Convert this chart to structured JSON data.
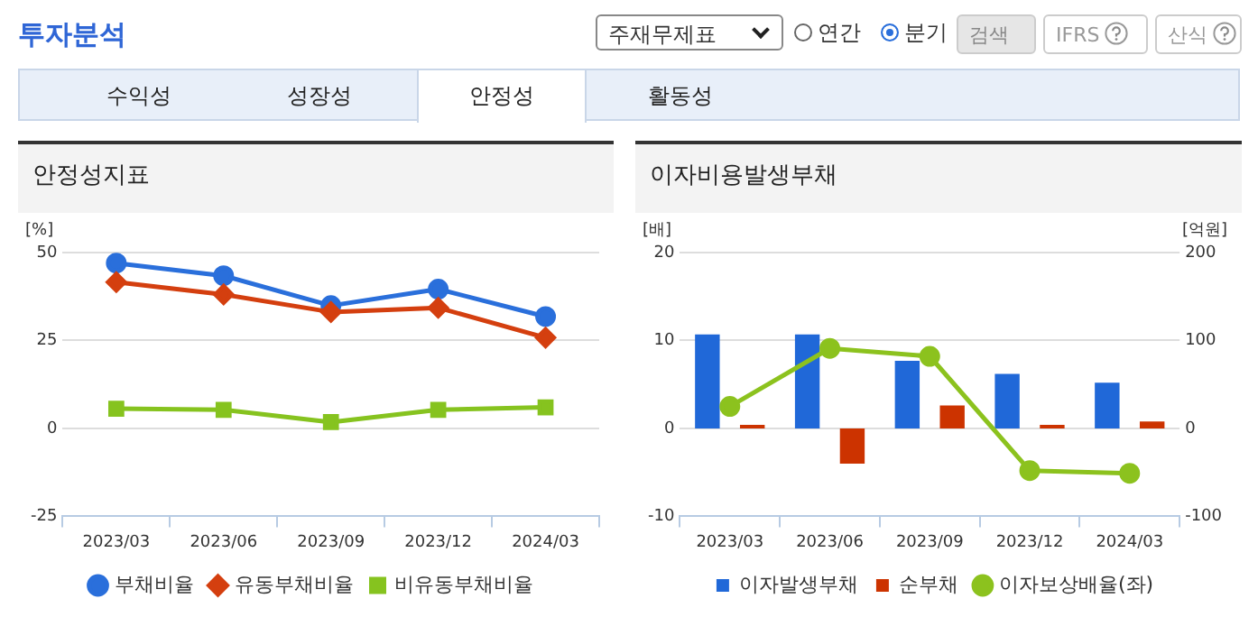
{
  "chart_data": [
    {
      "type": "other",
      "title": "투자분석",
      "annotations": [
        "주재무제표",
        "연간",
        "분기",
        "검색",
        "IFRS",
        "산식",
        "수익성",
        "성장성",
        "안정성",
        "활동성"
      ]
    },
    {
      "type": "line",
      "title": "안정성지표",
      "ylabel": "[%]",
      "categories": [
        "2023/03",
        "2023/06",
        "2023/09",
        "2023/12",
        "2024/03"
      ],
      "ylim": [
        -25,
        50
      ],
      "yticks": [
        -25,
        0,
        25,
        50
      ],
      "grid": "y",
      "legend": "bottom",
      "series": [
        {
          "name": "부채비율",
          "color": "#2a6fdb",
          "marker": "circle",
          "values": [
            47.0,
            43.4,
            34.9,
            39.6,
            31.8
          ]
        },
        {
          "name": "유동부채비율",
          "color": "#d43f0f",
          "marker": "diamond",
          "values": [
            41.6,
            38.1,
            33.1,
            34.3,
            25.8
          ]
        },
        {
          "name": "비유동부채비율",
          "color": "#86c31f",
          "marker": "square",
          "values": [
            5.6,
            5.3,
            1.8,
            5.3,
            6.0
          ]
        }
      ]
    },
    {
      "type": "bar",
      "title": "이자비용발생부채",
      "ylabel": "[배]",
      "y2label": "[억원]",
      "categories": [
        "2023/03",
        "2023/06",
        "2023/09",
        "2023/12",
        "2024/03"
      ],
      "ylim": [
        -10,
        20
      ],
      "yticks": [
        -10,
        0,
        10,
        20
      ],
      "y2lim": [
        -100,
        200
      ],
      "y2ticks": [
        -100,
        0,
        100,
        200
      ],
      "grid": "y",
      "legend": "bottom",
      "series": [
        {
          "name": "이자발생부채",
          "color": "#2068d8",
          "axis": "y2",
          "values": [
            107,
            107,
            77,
            62,
            52
          ]
        },
        {
          "name": "순부채",
          "color": "#cc3300",
          "axis": "y2",
          "values": [
            4,
            -40,
            26,
            4,
            8
          ]
        },
        {
          "name": "이자보상배율(좌)",
          "type": "line",
          "color": "#8cc21e",
          "marker": "circle",
          "values": [
            2.5,
            9.1,
            8.2,
            -4.8,
            -5.1
          ]
        }
      ]
    }
  ]
}
